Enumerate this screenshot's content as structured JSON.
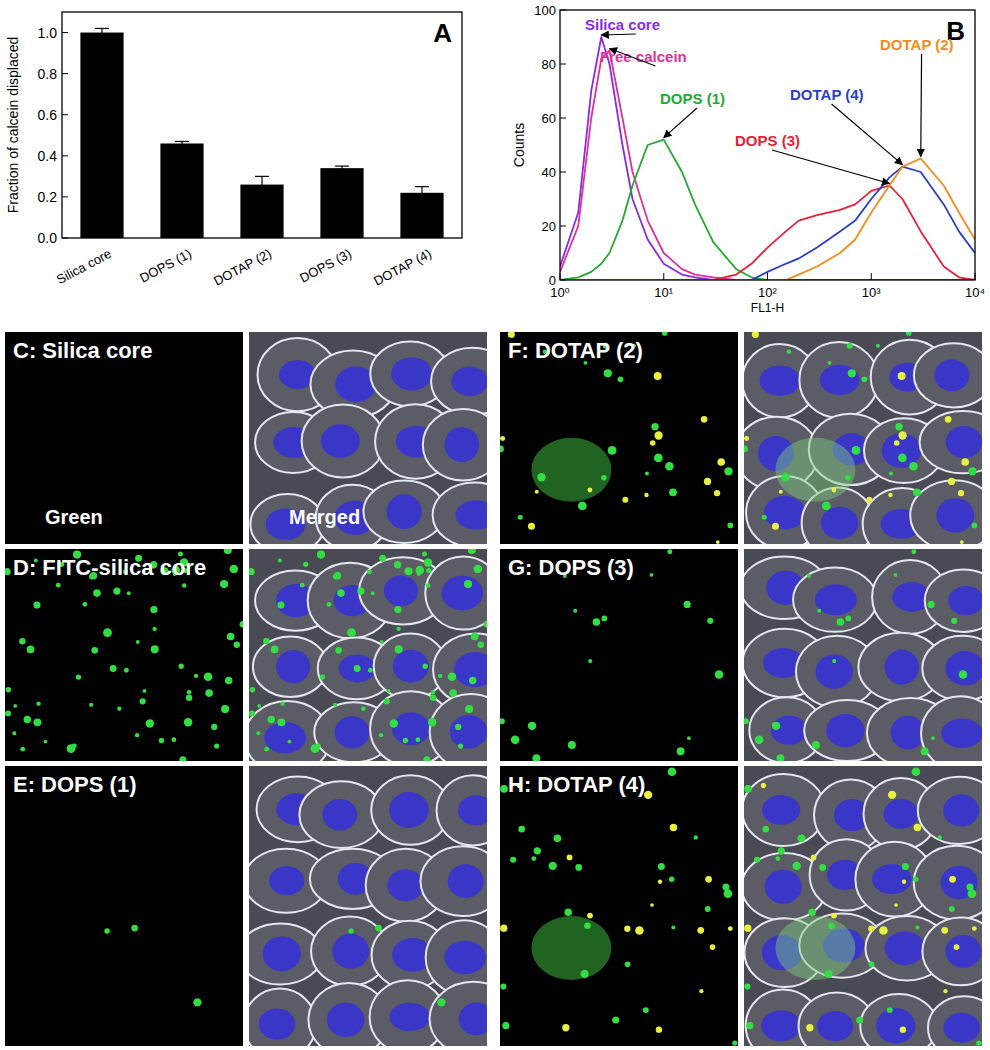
{
  "chart_data": [
    {
      "type": "bar",
      "title": "A",
      "y_label": "Fraction of calcein displaced",
      "categories": [
        "Silica core",
        "DOPS (1)",
        "DOTAP (2)",
        "DOPS (3)",
        "DOTAP (4)"
      ],
      "values": [
        1.0,
        0.46,
        0.26,
        0.34,
        0.22
      ],
      "errors": [
        0.02,
        0.01,
        0.04,
        0.01,
        0.03
      ],
      "color": "#000000",
      "ylim": [
        0,
        1.1
      ],
      "yticks": [
        {
          "value": 0,
          "label": "0.0"
        },
        {
          "value": 0.2,
          "label": "0.2"
        },
        {
          "value": 0.4,
          "label": "0.4"
        },
        {
          "value": 0.6,
          "label": "0.6"
        },
        {
          "value": 0.8,
          "label": "0.8"
        },
        {
          "value": 1.0,
          "label": "1.0"
        }
      ]
    },
    {
      "type": "line",
      "title": "B",
      "x_label": "FL1-H",
      "y_label": "Counts",
      "log": "x",
      "x": [
        1,
        1.5,
        2,
        2.5,
        3,
        4,
        5,
        7,
        10,
        15,
        20,
        30,
        50,
        70,
        100,
        150,
        200,
        300,
        500,
        700,
        1000,
        1500,
        2000,
        3000,
        5000,
        7000,
        10000
      ],
      "xlim": [
        1,
        10000
      ],
      "xticks": [
        {
          "value": 1,
          "label": "10⁰"
        },
        {
          "value": 10,
          "label": "10¹"
        },
        {
          "value": 100,
          "label": "10²"
        },
        {
          "value": 1000,
          "label": "10³"
        },
        {
          "value": 10000,
          "label": "10⁴"
        }
      ],
      "ylim": [
        0,
        100
      ],
      "yticks": [
        0,
        20,
        40,
        60,
        80,
        100
      ],
      "series": [
        {
          "name": "Silica core",
          "color": "#8a2be2",
          "values": [
            5,
            25,
            70,
            90,
            80,
            50,
            30,
            15,
            6,
            2,
            1,
            0,
            0,
            0,
            0,
            0,
            0,
            0,
            0,
            0,
            0,
            0,
            0,
            0,
            0,
            0,
            0
          ]
        },
        {
          "name": "Free calcein",
          "color": "#e0309a",
          "values": [
            3,
            20,
            60,
            82,
            85,
            60,
            40,
            22,
            10,
            4,
            2,
            1,
            0,
            0,
            0,
            0,
            0,
            0,
            0,
            0,
            0,
            0,
            0,
            0,
            0,
            0,
            0
          ]
        },
        {
          "name": "DOPS (1)",
          "color": "#22aa33",
          "values": [
            0,
            1,
            3,
            6,
            10,
            22,
            35,
            50,
            52,
            40,
            28,
            14,
            4,
            1,
            0,
            0,
            0,
            0,
            0,
            0,
            0,
            0,
            0,
            0,
            0,
            0,
            0
          ]
        },
        {
          "name": "DOPS (3)",
          "color": "#e8203a",
          "values": [
            0,
            0,
            0,
            0,
            0,
            0,
            0,
            0,
            0,
            0,
            0,
            0,
            2,
            6,
            12,
            18,
            22,
            24,
            26,
            28,
            33,
            35,
            30,
            18,
            5,
            1,
            0
          ]
        },
        {
          "name": "DOTAP (4)",
          "color": "#2a3fc8",
          "values": [
            0,
            0,
            0,
            0,
            0,
            0,
            0,
            0,
            0,
            0,
            0,
            0,
            0,
            0,
            3,
            6,
            8,
            12,
            18,
            22,
            30,
            38,
            42,
            40,
            28,
            18,
            10
          ]
        },
        {
          "name": "DOTAP (2)",
          "color": "#f28c1a",
          "values": [
            0,
            0,
            0,
            0,
            0,
            0,
            0,
            0,
            0,
            0,
            0,
            0,
            0,
            0,
            0,
            0,
            2,
            5,
            10,
            15,
            25,
            35,
            42,
            45,
            35,
            25,
            15
          ]
        }
      ]
    }
  ],
  "image_panels": [
    {
      "label": "C: Silica core",
      "channel_labels": [
        "Green",
        "Merged"
      ]
    },
    {
      "label": "D: FITC-silica core"
    },
    {
      "label": "E: DOPS (1)"
    },
    {
      "label": "F: DOTAP (2)"
    },
    {
      "label": "G: DOPS (3)"
    },
    {
      "label": "H: DOTAP (4)"
    }
  ]
}
